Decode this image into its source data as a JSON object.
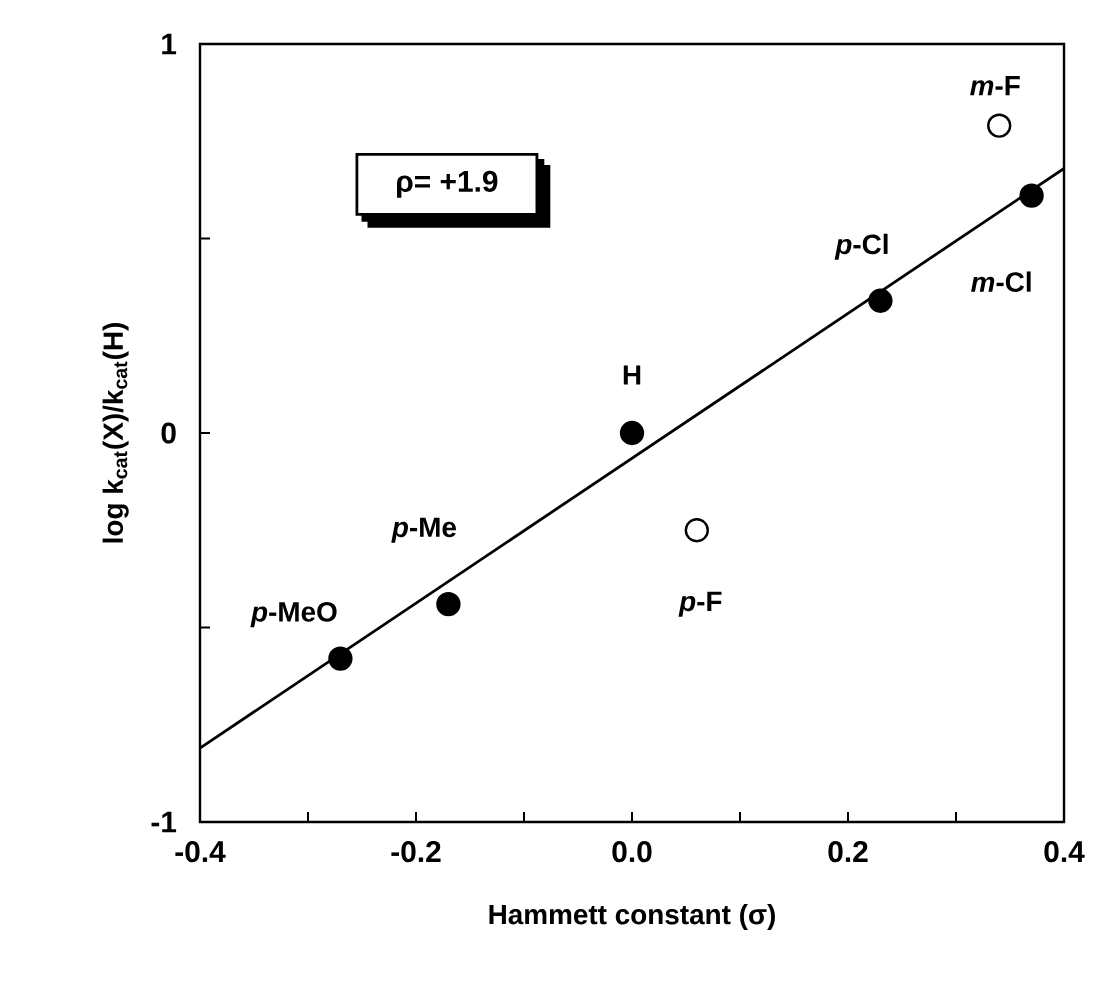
{
  "chart_data": {
    "type": "scatter",
    "xlabel": "Hammett constant (σ)",
    "ylabel": "log k$_{cat}$(X)/k$_{cat}$(H)",
    "xlim": [
      -0.4,
      0.4
    ],
    "ylim": [
      -1,
      1
    ],
    "xticks": [
      -0.4,
      {
        "value": -0.3,
        "label": null
      },
      -0.2,
      {
        "value": -0.1,
        "label": null
      },
      {
        "value": 0,
        "label": "0.0"
      },
      {
        "value": 0.1,
        "label": null
      },
      0.2,
      {
        "value": 0.3,
        "label": null
      },
      0.4
    ],
    "yticks": [
      -1,
      {
        "value": -0.5,
        "label": null
      },
      0,
      {
        "value": 0.5,
        "label": null
      },
      1
    ],
    "series": [
      {
        "type": "line",
        "x": [
          -0.4,
          0.4
        ],
        "values": [
          -0.81,
          0.68
        ],
        "color": "#000000",
        "marker": "none"
      },
      {
        "x": [
          -0.27,
          -0.17,
          0,
          0.23,
          0.37
        ],
        "values": [
          -0.58,
          -0.44,
          0,
          0.34,
          0.61
        ],
        "color": "#000000",
        "marker": "circle"
      },
      {
        "x": [
          0.06,
          0.34
        ],
        "values": [
          -0.25,
          0.79
        ],
        "color": "#ffffff",
        "marker": "circle"
      }
    ],
    "annotations": [
      "ρ= +1.9",
      {
        "text": "*p*-MeO",
        "x": -0.27,
        "y": -0.58
      },
      {
        "text": "*p*-Me",
        "x": -0.17,
        "y": -0.44
      },
      {
        "text": "H",
        "x": 0,
        "y": 0
      },
      {
        "text": "*p*-F",
        "x": 0.06,
        "y": -0.25
      },
      {
        "text": "*p*-Cl",
        "x": 0.23,
        "y": 0.34
      },
      {
        "text": "*m*-F",
        "x": 0.34,
        "y": 0.79
      },
      {
        "text": "*m*-Cl",
        "x": 0.37,
        "y": 0.61
      }
    ]
  }
}
